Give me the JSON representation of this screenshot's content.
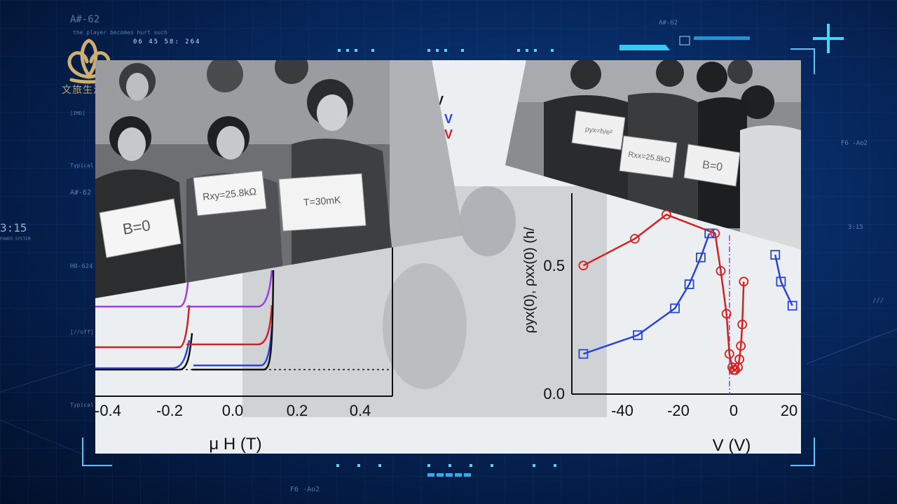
{
  "overlay": {
    "hud_code_left": "A#-62",
    "hud_sub_left": "the player becomes hurt such",
    "hud_time": "06 45 58: 264",
    "hud_clock": "3:15",
    "hud_clock_sub": "POWER SYSTEM",
    "hud_bottom_code": "F6 -Ao2",
    "hud_right_code": "F6 -Ao2",
    "hud_left_lines": [
      "[IMD]",
      "Typical",
      "A#-62",
      "H0-624",
      "[//off]",
      "Typical"
    ],
    "hud_right_lines": [
      "3:15",
      "///"
    ],
    "logo_text": "文旅生活"
  },
  "left_plot": {
    "xlabel": "μ H (T)",
    "x_ticks": [
      "-0.4",
      "-0.2",
      "0.0",
      "0.2",
      "0.4"
    ],
    "legend_glyphs": [
      "V",
      "V",
      "V"
    ]
  },
  "right_plot": {
    "ylabel": "ρyx(0), ρxx(0) (h/",
    "xlabel": "V (V)",
    "x_ticks": [
      "-40",
      "-20",
      "0",
      "20"
    ],
    "y_ticks": [
      "0.5",
      "0.0"
    ],
    "red_points": [
      [
        -54,
        0.48
      ],
      [
        -36,
        0.58
      ],
      [
        -25,
        0.67
      ],
      [
        -8,
        0.6
      ],
      [
        -6,
        0.46
      ],
      [
        -4,
        0.3
      ],
      [
        -3,
        0.15
      ],
      [
        -2,
        0.1
      ],
      [
        -1.5,
        0.09
      ],
      [
        -1,
        0.09
      ],
      [
        0,
        0.1
      ],
      [
        0.5,
        0.13
      ],
      [
        1,
        0.18
      ],
      [
        1.5,
        0.26
      ],
      [
        2,
        0.42
      ]
    ],
    "blue_points": [
      [
        -54,
        0.15
      ],
      [
        -35,
        0.22
      ],
      [
        -22,
        0.32
      ],
      [
        -17,
        0.41
      ],
      [
        -13,
        0.51
      ],
      [
        -10,
        0.6
      ],
      [
        13,
        0.52
      ],
      [
        15,
        0.42
      ],
      [
        19,
        0.33
      ]
    ],
    "colors": {
      "red": "#d62020",
      "blue": "#2a45d6"
    }
  },
  "photo_signs": {
    "sign1": "B=0",
    "sign2": "Rxy=25.8kΩ",
    "sign3": "T=30mK",
    "sign4": "ρyx=h/e²",
    "sign5": "Rxx=25.8kΩ",
    "sign6": "B=0"
  }
}
